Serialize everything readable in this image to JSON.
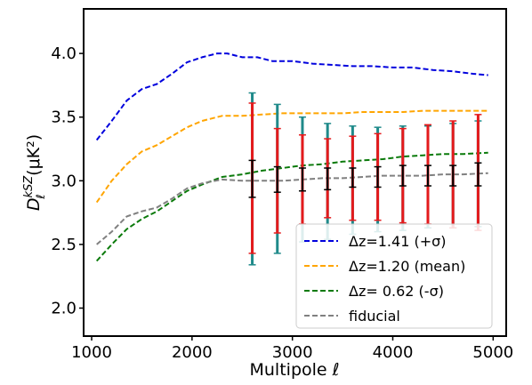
{
  "chart_data": {
    "type": "line",
    "xlabel": "Multipole ℓ",
    "ylabel_main": "D",
    "ylabel_sub": "ℓ",
    "ylabel_sup": "kSZ",
    "ylabel_unit": "(μK²)",
    "xlim": [
      920,
      5130
    ],
    "ylim": [
      1.78,
      4.35
    ],
    "xticks": [
      "1000",
      "2000",
      "3000",
      "4000",
      "5000"
    ],
    "xtick_values": [
      1000,
      2000,
      3000,
      4000,
      5000
    ],
    "yticks": [
      "2.0",
      "2.5",
      "3.0",
      "3.5",
      "4.0"
    ],
    "ytick_values": [
      2.0,
      2.5,
      3.0,
      3.5,
      4.0
    ],
    "legend_position": "lower-right",
    "series": [
      {
        "name": "Δz=1.41 (+σ)",
        "color": "#0000dd",
        "x": [
          1050,
          1200,
          1350,
          1500,
          1650,
          1800,
          1950,
          2100,
          2250,
          2350,
          2500,
          2650,
          2800,
          3000,
          3200,
          3400,
          3600,
          3800,
          4000,
          4200,
          4400,
          4600,
          4800,
          4950
        ],
        "y": [
          3.32,
          3.47,
          3.63,
          3.72,
          3.76,
          3.84,
          3.93,
          3.97,
          4.0,
          4.0,
          3.97,
          3.97,
          3.94,
          3.94,
          3.92,
          3.91,
          3.9,
          3.9,
          3.89,
          3.89,
          3.87,
          3.86,
          3.84,
          3.83
        ]
      },
      {
        "name": "Δz=1.20 (mean)",
        "color": "#ffa500",
        "x": [
          1050,
          1200,
          1350,
          1500,
          1650,
          1800,
          1950,
          2100,
          2300,
          2500,
          2700,
          2900,
          3100,
          3300,
          3500,
          3700,
          3900,
          4100,
          4300,
          4500,
          4700,
          4950
        ],
        "y": [
          2.83,
          3.0,
          3.13,
          3.23,
          3.28,
          3.35,
          3.42,
          3.47,
          3.51,
          3.51,
          3.52,
          3.53,
          3.53,
          3.53,
          3.53,
          3.54,
          3.54,
          3.54,
          3.55,
          3.55,
          3.55,
          3.55
        ]
      },
      {
        "name": "Δz= 0.62 (-σ)",
        "color": "#0a7a0a",
        "x": [
          1050,
          1200,
          1350,
          1500,
          1650,
          1800,
          1950,
          2100,
          2300,
          2500,
          2700,
          2900,
          3100,
          3300,
          3500,
          3700,
          3900,
          4100,
          4300,
          4500,
          4700,
          4950
        ],
        "y": [
          2.37,
          2.5,
          2.62,
          2.7,
          2.76,
          2.84,
          2.92,
          2.97,
          3.03,
          3.05,
          3.08,
          3.1,
          3.12,
          3.13,
          3.15,
          3.16,
          3.17,
          3.19,
          3.2,
          3.21,
          3.21,
          3.22
        ]
      },
      {
        "name": "fiducial",
        "color": "#808080",
        "x": [
          1050,
          1200,
          1350,
          1500,
          1650,
          1800,
          1950,
          2100,
          2300,
          2500,
          2700,
          2900,
          3100,
          3300,
          3500,
          3700,
          3900,
          4100,
          4300,
          4500,
          4700,
          4950
        ],
        "y": [
          2.5,
          2.6,
          2.72,
          2.76,
          2.79,
          2.86,
          2.94,
          2.98,
          3.01,
          3.0,
          3.0,
          3.0,
          3.01,
          3.02,
          3.02,
          3.03,
          3.04,
          3.04,
          3.04,
          3.05,
          3.05,
          3.06
        ]
      }
    ],
    "error_bars": [
      {
        "name": "teal",
        "color": "#1f8a8a",
        "x": [
          2600,
          2850,
          3100,
          3350,
          3600,
          3850,
          4100,
          4350,
          4600,
          4850
        ],
        "y": [
          3.02,
          3.01,
          3.01,
          3.02,
          3.02,
          3.03,
          3.04,
          3.04,
          3.04,
          3.05
        ],
        "lo": [
          2.34,
          2.43,
          2.52,
          2.54,
          2.58,
          2.6,
          2.61,
          2.63,
          2.63,
          2.64
        ],
        "hi": [
          3.69,
          3.6,
          3.5,
          3.45,
          3.43,
          3.42,
          3.43,
          3.43,
          3.45,
          3.47
        ]
      },
      {
        "name": "red",
        "color": "#e41a1c",
        "x": [
          2600,
          2850,
          3100,
          3350,
          3600,
          3850,
          4100,
          4350,
          4600,
          4850
        ],
        "y": [
          3.02,
          3.01,
          3.01,
          3.02,
          3.02,
          3.03,
          3.04,
          3.04,
          3.04,
          3.05
        ],
        "lo": [
          2.43,
          2.59,
          2.66,
          2.71,
          2.69,
          2.69,
          2.67,
          2.66,
          2.63,
          2.61
        ],
        "hi": [
          3.61,
          3.41,
          3.36,
          3.33,
          3.35,
          3.37,
          3.41,
          3.44,
          3.47,
          3.52
        ]
      },
      {
        "name": "black",
        "color": "#000000",
        "x": [
          2600,
          2850,
          3100,
          3350,
          3600,
          3850,
          4100,
          4350,
          4600,
          4850
        ],
        "y": [
          3.02,
          3.01,
          3.01,
          3.02,
          3.02,
          3.03,
          3.04,
          3.04,
          3.04,
          3.05
        ],
        "lo": [
          2.87,
          2.91,
          2.92,
          2.93,
          2.95,
          2.95,
          2.96,
          2.96,
          2.96,
          2.96
        ],
        "hi": [
          3.16,
          3.11,
          3.1,
          3.1,
          3.1,
          3.11,
          3.12,
          3.12,
          3.12,
          3.14
        ]
      }
    ]
  }
}
